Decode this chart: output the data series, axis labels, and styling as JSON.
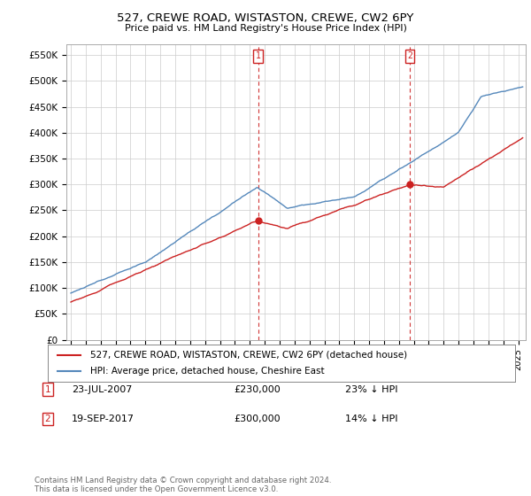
{
  "title": "527, CREWE ROAD, WISTASTON, CREWE, CW2 6PY",
  "subtitle": "Price paid vs. HM Land Registry's House Price Index (HPI)",
  "ylabel_ticks": [
    "£0",
    "£50K",
    "£100K",
    "£150K",
    "£200K",
    "£250K",
    "£300K",
    "£350K",
    "£400K",
    "£450K",
    "£500K",
    "£550K"
  ],
  "ytick_values": [
    0,
    50000,
    100000,
    150000,
    200000,
    250000,
    300000,
    350000,
    400000,
    450000,
    500000,
    550000
  ],
  "ylim": [
    0,
    570000
  ],
  "xlim_start": 1994.7,
  "xlim_end": 2025.5,
  "hpi_color": "#5588bb",
  "price_color": "#cc2222",
  "marker1_date": 2007.55,
  "marker1_price": 230000,
  "marker2_date": 2017.72,
  "marker2_price": 300000,
  "legend_label1": "527, CREWE ROAD, WISTASTON, CREWE, CW2 6PY (detached house)",
  "legend_label2": "HPI: Average price, detached house, Cheshire East",
  "footer": "Contains HM Land Registry data © Crown copyright and database right 2024.\nThis data is licensed under the Open Government Licence v3.0.",
  "background_color": "#ffffff",
  "grid_color": "#cccccc",
  "ann1_date": "23-JUL-2007",
  "ann1_price": "£230,000",
  "ann1_pct": "23% ↓ HPI",
  "ann2_date": "19-SEP-2017",
  "ann2_price": "£300,000",
  "ann2_pct": "14% ↓ HPI"
}
